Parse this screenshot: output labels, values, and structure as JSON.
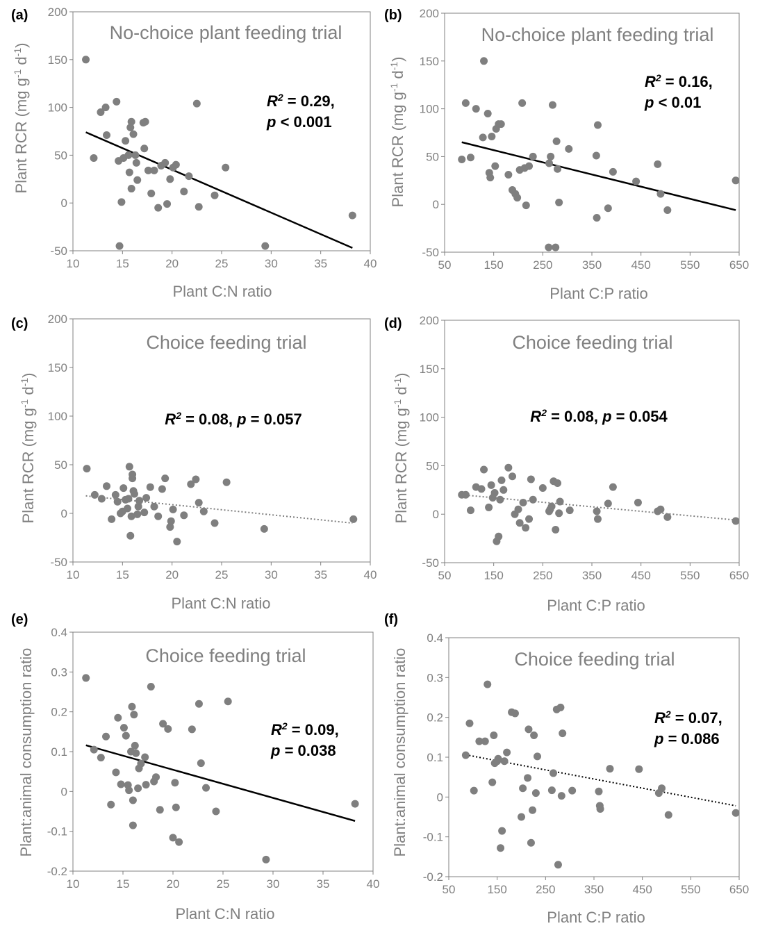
{
  "figure": {
    "colors": {
      "point": "#7f7f7f",
      "axis": "#808080",
      "text": "#808080",
      "fit": "#000000",
      "dotted_fit": "#7f7f7f"
    }
  },
  "chart_data": [
    {
      "id": "a",
      "panel_label": "(a)",
      "type": "scatter",
      "title": "No-choice plant feeding trial",
      "xlabel": "Plant C:N ratio",
      "ylabel": "Plant RCR (mg g-1 d-1)",
      "xlim": [
        10,
        40
      ],
      "ylim": [
        -50,
        200
      ],
      "xticks": [
        10,
        15,
        20,
        25,
        30,
        35,
        40
      ],
      "yticks": [
        -50,
        0,
        50,
        100,
        150,
        200
      ],
      "stat_lines": [
        {
          "r2": " = 0.29,"
        },
        {
          "p": " < 0.001"
        }
      ],
      "fit": {
        "style": "solid",
        "x": [
          11.3,
          38.2
        ],
        "y": [
          74,
          -47
        ]
      },
      "points": [
        [
          11.3,
          150
        ],
        [
          12.1,
          47
        ],
        [
          12.8,
          95
        ],
        [
          13.3,
          100
        ],
        [
          13.4,
          71
        ],
        [
          14.4,
          106
        ],
        [
          14.6,
          44
        ],
        [
          14.7,
          -45
        ],
        [
          14.9,
          1
        ],
        [
          15.1,
          47
        ],
        [
          15.3,
          65
        ],
        [
          15.6,
          50
        ],
        [
          15.7,
          32
        ],
        [
          15.8,
          79
        ],
        [
          15.9,
          85
        ],
        [
          15.9,
          15
        ],
        [
          16.1,
          72
        ],
        [
          16.3,
          50
        ],
        [
          16.4,
          42
        ],
        [
          16.5,
          24
        ],
        [
          17.1,
          84
        ],
        [
          17.2,
          57
        ],
        [
          17.3,
          85
        ],
        [
          17.6,
          34
        ],
        [
          17.9,
          10
        ],
        [
          18.2,
          34
        ],
        [
          18.6,
          -5
        ],
        [
          18.9,
          39
        ],
        [
          19.3,
          42
        ],
        [
          19.5,
          -1
        ],
        [
          19.8,
          25
        ],
        [
          20.1,
          37
        ],
        [
          20.4,
          40
        ],
        [
          21.2,
          12
        ],
        [
          21.7,
          28
        ],
        [
          22.5,
          104
        ],
        [
          22.7,
          -4
        ],
        [
          24.3,
          8
        ],
        [
          25.4,
          37
        ],
        [
          29.4,
          -45
        ],
        [
          38.2,
          -13
        ]
      ]
    },
    {
      "id": "b",
      "panel_label": "(b)",
      "type": "scatter",
      "title": "No-choice plant feeding trial",
      "xlabel": "Plant C:P ratio",
      "ylabel": "Plant RCR (mg g-1 d-1)",
      "xlim": [
        50,
        650
      ],
      "ylim": [
        -50,
        200
      ],
      "xticks": [
        50,
        150,
        250,
        350,
        450,
        550,
        650
      ],
      "yticks": [
        -50,
        0,
        50,
        100,
        150,
        200
      ],
      "stat_lines": [
        {
          "r2": " = 0.16,"
        },
        {
          "p": " < 0.01"
        }
      ],
      "fit": {
        "style": "solid",
        "x": [
          85,
          643
        ],
        "y": [
          65,
          -6
        ]
      },
      "points": [
        [
          85,
          47
        ],
        [
          93,
          106
        ],
        [
          103,
          49
        ],
        [
          114,
          100
        ],
        [
          128,
          70
        ],
        [
          130,
          150
        ],
        [
          138,
          95
        ],
        [
          141,
          33
        ],
        [
          143,
          28
        ],
        [
          146,
          71
        ],
        [
          153,
          40
        ],
        [
          155,
          79
        ],
        [
          160,
          84
        ],
        [
          165,
          84
        ],
        [
          180,
          31
        ],
        [
          188,
          15
        ],
        [
          194,
          11
        ],
        [
          198,
          7
        ],
        [
          203,
          36
        ],
        [
          208,
          106
        ],
        [
          213,
          38
        ],
        [
          216,
          -1
        ],
        [
          222,
          40
        ],
        [
          230,
          50
        ],
        [
          262,
          -45
        ],
        [
          263,
          43
        ],
        [
          266,
          50
        ],
        [
          270,
          104
        ],
        [
          276,
          -45
        ],
        [
          278,
          66
        ],
        [
          280,
          37
        ],
        [
          283,
          2
        ],
        [
          303,
          58
        ],
        [
          359,
          51
        ],
        [
          360,
          -14
        ],
        [
          362,
          83
        ],
        [
          383,
          -4
        ],
        [
          393,
          34
        ],
        [
          440,
          24
        ],
        [
          484,
          42
        ],
        [
          490,
          11
        ],
        [
          504,
          -6
        ],
        [
          643,
          25
        ]
      ]
    },
    {
      "id": "c",
      "panel_label": "(c)",
      "type": "scatter",
      "title": "Choice feeding trial",
      "xlabel": "Plant C:N ratio",
      "ylabel": "Plant RCR (mg g-1 d-1)",
      "xlim": [
        10,
        40
      ],
      "ylim": [
        -50,
        200
      ],
      "xticks": [
        10,
        15,
        20,
        25,
        30,
        35,
        40
      ],
      "yticks": [
        -50,
        0,
        50,
        100,
        150,
        200
      ],
      "stat_lines": [
        {
          "r2": " = 0.08, ",
          "p": " = 0.057"
        }
      ],
      "fit": {
        "style": "dotted",
        "x": [
          11.3,
          38.2
        ],
        "y": [
          18,
          -10
        ]
      },
      "points": [
        [
          11.4,
          46
        ],
        [
          12.2,
          19
        ],
        [
          12.9,
          15
        ],
        [
          13.4,
          28
        ],
        [
          13.9,
          -6
        ],
        [
          14.3,
          19
        ],
        [
          14.5,
          12
        ],
        [
          14.8,
          0
        ],
        [
          15.0,
          2
        ],
        [
          15.1,
          26
        ],
        [
          15.3,
          14
        ],
        [
          15.5,
          5
        ],
        [
          15.6,
          15
        ],
        [
          15.7,
          48
        ],
        [
          15.8,
          -23
        ],
        [
          15.9,
          -3
        ],
        [
          16.0,
          36
        ],
        [
          16.0,
          40
        ],
        [
          16.1,
          23
        ],
        [
          16.2,
          20
        ],
        [
          16.5,
          -1
        ],
        [
          16.6,
          7
        ],
        [
          16.7,
          13
        ],
        [
          17.2,
          1
        ],
        [
          17.4,
          16
        ],
        [
          17.8,
          27
        ],
        [
          18.2,
          7
        ],
        [
          18.6,
          -3
        ],
        [
          19.0,
          25
        ],
        [
          19.3,
          36
        ],
        [
          19.8,
          -14
        ],
        [
          19.9,
          -8
        ],
        [
          20.1,
          4
        ],
        [
          20.5,
          -29
        ],
        [
          21.2,
          -2
        ],
        [
          21.9,
          30
        ],
        [
          22.4,
          35
        ],
        [
          22.7,
          11
        ],
        [
          23.2,
          2
        ],
        [
          24.3,
          -10
        ],
        [
          25.5,
          32
        ],
        [
          29.3,
          -16
        ],
        [
          38.3,
          -6
        ]
      ]
    },
    {
      "id": "d",
      "panel_label": "(d)",
      "type": "scatter",
      "title": "Choice feeding trial",
      "xlabel": "Plant C:P ratio",
      "ylabel": "Plant RCR (mg g-1 d-1)",
      "xlim": [
        50,
        650
      ],
      "ylim": [
        -50,
        200
      ],
      "xticks": [
        50,
        150,
        250,
        350,
        450,
        550,
        650
      ],
      "yticks": [
        -50,
        0,
        50,
        100,
        150,
        200
      ],
      "stat_lines": [
        {
          "r2": " = 0.08, ",
          "p": " = 0.054"
        }
      ],
      "fit": {
        "style": "dotted",
        "x": [
          85,
          643
        ],
        "y": [
          20,
          -6
        ]
      },
      "points": [
        [
          85,
          20
        ],
        [
          93,
          20
        ],
        [
          103,
          4
        ],
        [
          114,
          28
        ],
        [
          125,
          26
        ],
        [
          130,
          46
        ],
        [
          140,
          7
        ],
        [
          145,
          30
        ],
        [
          148,
          17
        ],
        [
          152,
          22
        ],
        [
          156,
          -28
        ],
        [
          160,
          -23
        ],
        [
          163,
          15
        ],
        [
          166,
          35
        ],
        [
          170,
          25
        ],
        [
          180,
          48
        ],
        [
          188,
          39
        ],
        [
          193,
          0
        ],
        [
          200,
          5
        ],
        [
          203,
          -9
        ],
        [
          210,
          12
        ],
        [
          215,
          -14
        ],
        [
          222,
          -5
        ],
        [
          226,
          36
        ],
        [
          230,
          15
        ],
        [
          250,
          27
        ],
        [
          263,
          3
        ],
        [
          265,
          5
        ],
        [
          268,
          8
        ],
        [
          272,
          34
        ],
        [
          276,
          -16
        ],
        [
          280,
          32
        ],
        [
          283,
          1
        ],
        [
          285,
          13
        ],
        [
          305,
          4
        ],
        [
          360,
          3
        ],
        [
          362,
          -5
        ],
        [
          383,
          11
        ],
        [
          393,
          28
        ],
        [
          444,
          12
        ],
        [
          484,
          3
        ],
        [
          490,
          5
        ],
        [
          504,
          -3
        ],
        [
          643,
          -7
        ]
      ]
    },
    {
      "id": "e",
      "panel_label": "(e)",
      "type": "scatter",
      "title": "Choice feeding trial",
      "xlabel": "Plant C:N ratio",
      "ylabel": "Plant:animal consumption ratio",
      "xlim": [
        10,
        40
      ],
      "ylim": [
        -0.2,
        0.4
      ],
      "xticks": [
        10,
        15,
        20,
        25,
        30,
        35,
        40
      ],
      "yticks": [
        -0.2,
        -0.1,
        0,
        0.1,
        0.2,
        0.3,
        0.4
      ],
      "stat_lines": [
        {
          "r2": " = 0.09,"
        },
        {
          "p": " = 0.038"
        }
      ],
      "fit": {
        "style": "solid",
        "x": [
          11.3,
          38.2
        ],
        "y": [
          0.116,
          -0.074
        ]
      },
      "points": [
        [
          11.3,
          0.285
        ],
        [
          12.1,
          0.105
        ],
        [
          12.8,
          0.085
        ],
        [
          13.3,
          0.138
        ],
        [
          13.8,
          -0.033
        ],
        [
          14.3,
          0.048
        ],
        [
          14.5,
          0.185
        ],
        [
          14.8,
          0.018
        ],
        [
          15.1,
          0.16
        ],
        [
          15.3,
          0.14
        ],
        [
          15.5,
          0.016
        ],
        [
          15.6,
          0.003
        ],
        [
          15.8,
          0.1
        ],
        [
          15.9,
          0.213
        ],
        [
          16.0,
          -0.022
        ],
        [
          16.0,
          -0.085
        ],
        [
          16.1,
          0.193
        ],
        [
          16.2,
          0.115
        ],
        [
          16.3,
          0.096
        ],
        [
          16.5,
          0.008
        ],
        [
          16.6,
          0.058
        ],
        [
          16.8,
          0.07
        ],
        [
          17.2,
          0.086
        ],
        [
          17.3,
          0.017
        ],
        [
          17.8,
          0.263
        ],
        [
          18.1,
          0.025
        ],
        [
          18.3,
          0.036
        ],
        [
          18.7,
          -0.046
        ],
        [
          19.0,
          0.17
        ],
        [
          19.5,
          0.157
        ],
        [
          20.0,
          -0.116
        ],
        [
          20.2,
          0.022
        ],
        [
          20.3,
          -0.04
        ],
        [
          20.6,
          -0.127
        ],
        [
          21.9,
          0.156
        ],
        [
          22.6,
          0.22
        ],
        [
          22.8,
          0.071
        ],
        [
          23.3,
          0.009
        ],
        [
          24.3,
          -0.05
        ],
        [
          25.5,
          0.226
        ],
        [
          29.3,
          -0.171
        ],
        [
          38.2,
          -0.031
        ]
      ]
    },
    {
      "id": "f",
      "panel_label": "(f)",
      "type": "scatter",
      "title": "Choice feeding trial",
      "xlabel": "Plant C:P ratio",
      "ylabel": "Plant:animal consumption ratio",
      "xlim": [
        50,
        650
      ],
      "ylim": [
        -0.2,
        0.4
      ],
      "xticks": [
        50,
        150,
        250,
        350,
        450,
        550,
        650
      ],
      "yticks": [
        -0.2,
        -0.1,
        0,
        0.1,
        0.2,
        0.3,
        0.4
      ],
      "stat_lines": [
        {
          "r2": " = 0.07,"
        },
        {
          "p": " = 0.086"
        }
      ],
      "fit": {
        "style": "dotted",
        "x": [
          85,
          643
        ],
        "y": [
          0.106,
          -0.022
        ]
      },
      "points": [
        [
          85,
          0.105
        ],
        [
          93,
          0.185
        ],
        [
          102,
          0.016
        ],
        [
          113,
          0.14
        ],
        [
          125,
          0.14
        ],
        [
          130,
          0.283
        ],
        [
          140,
          0.037
        ],
        [
          143,
          0.155
        ],
        [
          145,
          0.085
        ],
        [
          150,
          0.09
        ],
        [
          152,
          0.096
        ],
        [
          157,
          -0.128
        ],
        [
          160,
          -0.085
        ],
        [
          165,
          0.09
        ],
        [
          170,
          0.112
        ],
        [
          180,
          0.213
        ],
        [
          187,
          0.21
        ],
        [
          200,
          -0.05
        ],
        [
          203,
          0.022
        ],
        [
          213,
          0.048
        ],
        [
          215,
          0.17
        ],
        [
          220,
          -0.115
        ],
        [
          223,
          -0.033
        ],
        [
          226,
          0.155
        ],
        [
          230,
          0.01
        ],
        [
          233,
          0.102
        ],
        [
          263,
          0.017
        ],
        [
          266,
          0.06
        ],
        [
          273,
          0.22
        ],
        [
          276,
          -0.17
        ],
        [
          281,
          0.225
        ],
        [
          283,
          0.003
        ],
        [
          285,
          0.16
        ],
        [
          305,
          0.016
        ],
        [
          360,
          0.014
        ],
        [
          362,
          -0.022
        ],
        [
          363,
          -0.03
        ],
        [
          383,
          0.071
        ],
        [
          443,
          0.07
        ],
        [
          484,
          0.01
        ],
        [
          490,
          0.022
        ],
        [
          504,
          -0.045
        ],
        [
          643,
          -0.04
        ]
      ]
    }
  ]
}
